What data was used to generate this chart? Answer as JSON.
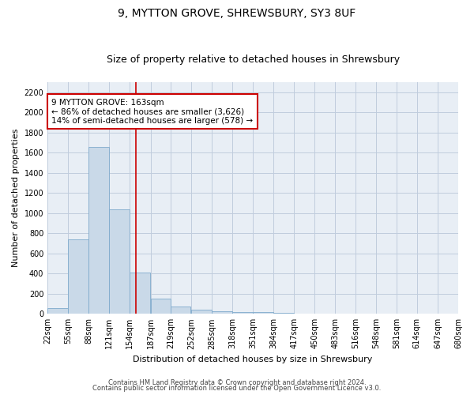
{
  "title": "9, MYTTON GROVE, SHREWSBURY, SY3 8UF",
  "subtitle": "Size of property relative to detached houses in Shrewsbury",
  "xlabel": "Distribution of detached houses by size in Shrewsbury",
  "ylabel": "Number of detached properties",
  "footnote1": "Contains HM Land Registry data © Crown copyright and database right 2024.",
  "footnote2": "Contains public sector information licensed under the Open Government Licence v3.0.",
  "property_size": 163,
  "annotation_line1": "9 MYTTON GROVE: 163sqm",
  "annotation_line2": "← 86% of detached houses are smaller (3,626)",
  "annotation_line3": "14% of semi-detached houses are larger (578) →",
  "bar_color": "#c9d9e8",
  "bar_edge_color": "#7faacc",
  "vline_color": "#cc0000",
  "annotation_box_color": "#ffffff",
  "annotation_box_edge": "#cc0000",
  "bin_labels": [
    "22sqm",
    "55sqm",
    "88sqm",
    "121sqm",
    "154sqm",
    "187sqm",
    "219sqm",
    "252sqm",
    "285sqm",
    "318sqm",
    "351sqm",
    "384sqm",
    "417sqm",
    "450sqm",
    "483sqm",
    "516sqm",
    "548sqm",
    "581sqm",
    "614sqm",
    "647sqm",
    "680sqm"
  ],
  "bin_starts": [
    22,
    55,
    88,
    121,
    154,
    187,
    219,
    252,
    285,
    318,
    351,
    384,
    417,
    450,
    483,
    516,
    548,
    581,
    614,
    647
  ],
  "bin_width": 33,
  "bar_heights": [
    55,
    740,
    1660,
    1040,
    410,
    155,
    75,
    40,
    25,
    20,
    15,
    8,
    5,
    3,
    2,
    1,
    0,
    0,
    0,
    0
  ],
  "ylim": [
    0,
    2300
  ],
  "yticks": [
    0,
    200,
    400,
    600,
    800,
    1000,
    1200,
    1400,
    1600,
    1800,
    2000,
    2200
  ],
  "bg_color": "#ffffff",
  "plot_bg_color": "#e8eef5",
  "grid_color": "#c0ccdd",
  "title_fontsize": 10,
  "subtitle_fontsize": 9,
  "ylabel_fontsize": 8,
  "xlabel_fontsize": 8,
  "tick_fontsize": 7,
  "footnote_fontsize": 6,
  "annot_fontsize": 7.5
}
